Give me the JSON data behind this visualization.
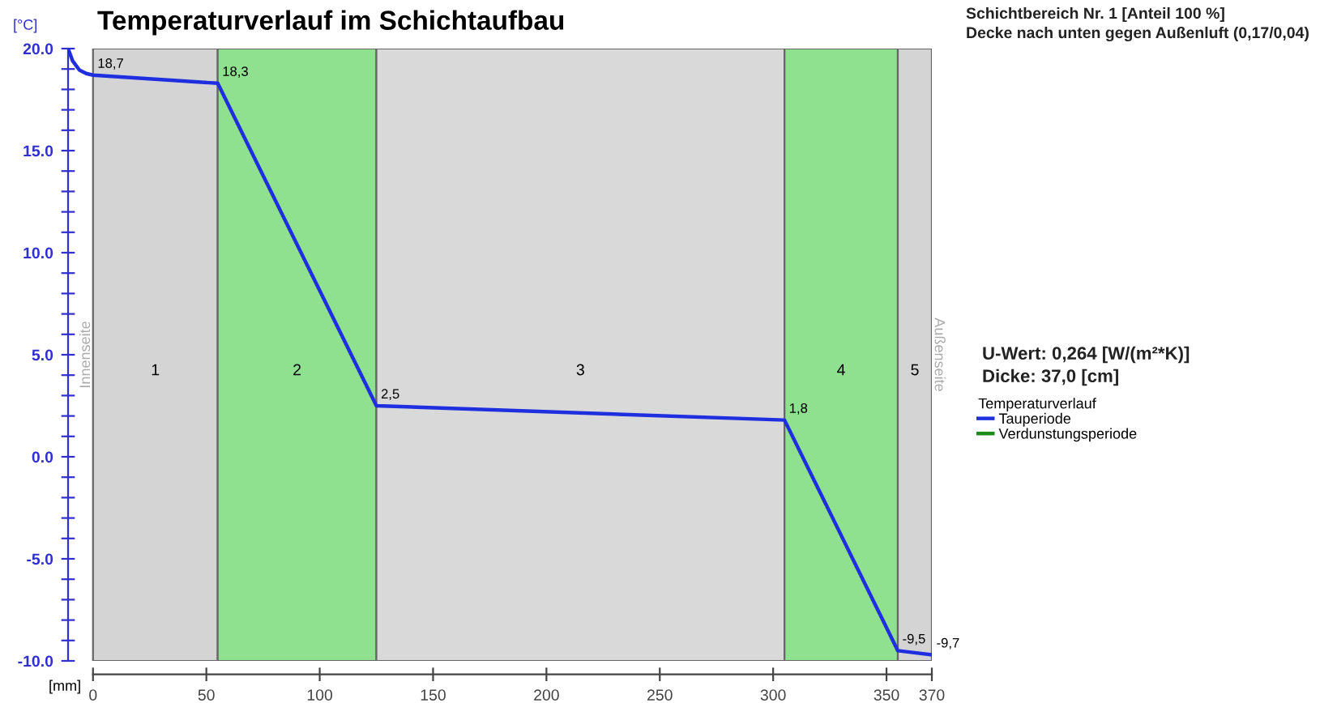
{
  "chart_data": {
    "type": "line",
    "title": "Temperaturverlauf im Schichtaufbau",
    "xlabel": "[mm]",
    "ylabel": "[°C]",
    "legend_title": "Temperaturverlauf",
    "x": [
      -11,
      -9,
      -6,
      -3,
      0,
      55,
      125,
      305,
      355,
      370
    ],
    "series": [
      {
        "name": "Tauperiode",
        "color": "#1f2fe0",
        "values": [
          20.0,
          19.4,
          18.95,
          18.78,
          18.7,
          18.3,
          2.5,
          1.8,
          -9.5,
          -9.7
        ],
        "value_labels": [
          null,
          null,
          null,
          null,
          "18,7",
          "18,3",
          "2,5",
          "1,8",
          "-9,5",
          "-9,7"
        ]
      },
      {
        "name": "Verdunstungsperiode",
        "color": "#1a8a1a",
        "values": [
          null,
          null,
          null,
          null,
          null,
          null,
          null,
          null,
          null,
          null
        ]
      }
    ],
    "bands": [
      {
        "axis": "x",
        "from": 0,
        "to": 55,
        "label": "1",
        "color": "#d4d4d4"
      },
      {
        "axis": "x",
        "from": 55,
        "to": 125,
        "label": "2",
        "color": "#8fe08f"
      },
      {
        "axis": "x",
        "from": 125,
        "to": 305,
        "label": "3",
        "color": "#d9d9d9"
      },
      {
        "axis": "x",
        "from": 305,
        "to": 355,
        "label": "4",
        "color": "#8fe08f"
      },
      {
        "axis": "x",
        "from": 355,
        "to": 370,
        "label": "5",
        "color": "#d4d4d4"
      }
    ],
    "xlim": [
      -11,
      370
    ],
    "ylim": [
      -10,
      20
    ],
    "xticks": [
      0,
      50,
      100,
      150,
      200,
      250,
      300,
      350,
      370
    ],
    "yticks": [
      {
        "value": -10,
        "label": "-10.0"
      },
      {
        "value": -9,
        "label": null
      },
      {
        "value": -8,
        "label": null
      },
      {
        "value": -7,
        "label": null
      },
      {
        "value": -6,
        "label": null
      },
      {
        "value": -5,
        "label": "-5.0"
      },
      {
        "value": -4,
        "label": null
      },
      {
        "value": -3,
        "label": null
      },
      {
        "value": -2,
        "label": null
      },
      {
        "value": -1,
        "label": null
      },
      {
        "value": 0,
        "label": "0.0"
      },
      {
        "value": 1,
        "label": null
      },
      {
        "value": 2,
        "label": null
      },
      {
        "value": 3,
        "label": null
      },
      {
        "value": 4,
        "label": null
      },
      {
        "value": 5,
        "label": "5.0"
      },
      {
        "value": 6,
        "label": null
      },
      {
        "value": 7,
        "label": null
      },
      {
        "value": 8,
        "label": null
      },
      {
        "value": 9,
        "label": null
      },
      {
        "value": 10,
        "label": "10.0"
      },
      {
        "value": 11,
        "label": null
      },
      {
        "value": 12,
        "label": null
      },
      {
        "value": 13,
        "label": null
      },
      {
        "value": 14,
        "label": null
      },
      {
        "value": 15,
        "label": "15.0"
      },
      {
        "value": 16,
        "label": null
      },
      {
        "value": 17,
        "label": null
      },
      {
        "value": 18,
        "label": null
      },
      {
        "value": 19,
        "label": null
      },
      {
        "value": 20,
        "label": "20.0"
      }
    ],
    "legend": "right",
    "grid": false,
    "annotations": [
      "Schichtbereich Nr. 1 [Anteil 100 %]",
      "Decke nach unten gegen Außenluft (0,17/0,04)",
      "U-Wert: 0,264 [W/(m²*K)]",
      "Dicke: 37,0 [cm]",
      "Innenseite",
      "Außenseite"
    ]
  }
}
